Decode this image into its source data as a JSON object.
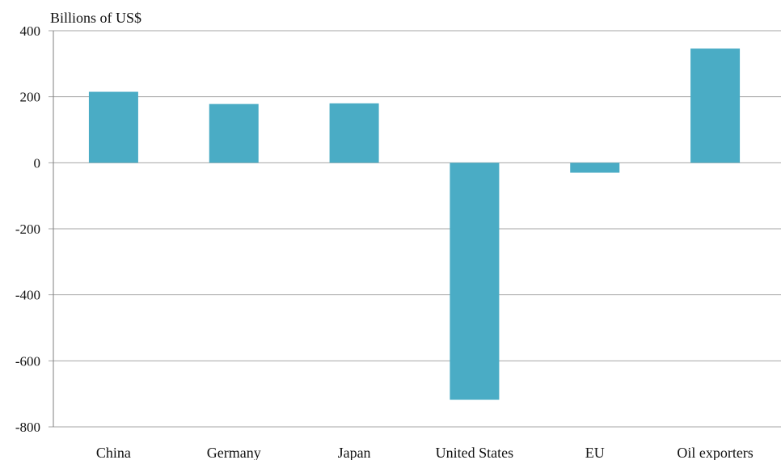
{
  "chart_data": {
    "type": "bar",
    "ylabel": "Billions of US$",
    "categories": [
      "China",
      "Germany",
      "Japan",
      "United States",
      "EU",
      "Oil exporters"
    ],
    "values": [
      215,
      178,
      180,
      -718,
      -30,
      346
    ],
    "ylim": [
      -800,
      400
    ],
    "yticks": [
      400,
      200,
      0,
      -200,
      -400,
      -600,
      -800
    ],
    "grid": true,
    "legend": "none",
    "bar_color": "#4aacc5"
  }
}
